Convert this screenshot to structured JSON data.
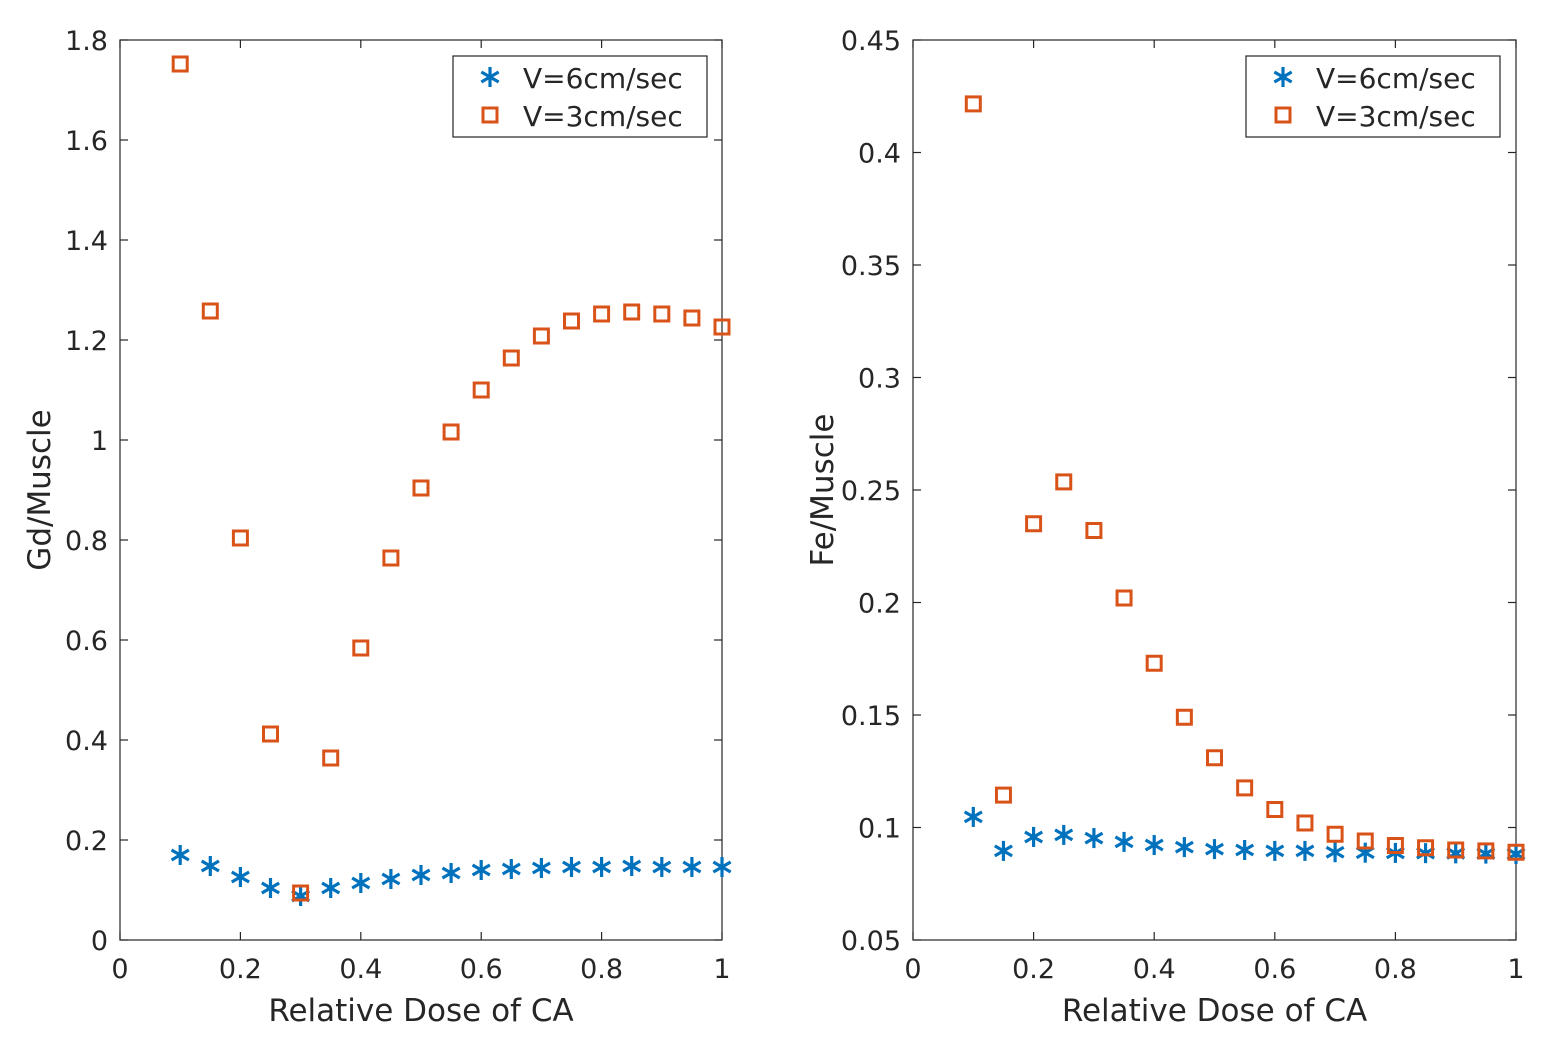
{
  "colors": {
    "series1": "#0072BD",
    "series2": "#D95319",
    "axis": "#262626"
  },
  "chart_data": [
    {
      "type": "scatter",
      "xlabel": "Relative Dose of CA",
      "ylabel": "Gd/Muscle",
      "xlim": [
        0,
        1
      ],
      "ylim": [
        0,
        1.8
      ],
      "xticks": [
        "0",
        "0.2",
        "0.4",
        "0.6",
        "0.8",
        "1"
      ],
      "yticks": [
        "0",
        "0.2",
        "0.4",
        "0.6",
        "0.8",
        "1",
        "1.2",
        "1.4",
        "1.6",
        "1.8"
      ],
      "grid": false,
      "legend_position": "top-right",
      "x": [
        0.1,
        0.15,
        0.2,
        0.25,
        0.3,
        0.35,
        0.4,
        0.45,
        0.5,
        0.55,
        0.6,
        0.65,
        0.7,
        0.75,
        0.8,
        0.85,
        0.9,
        0.95,
        1.0
      ],
      "series": [
        {
          "name": "V=6cm/sec",
          "marker": "asterisk",
          "values": [
            0.17,
            0.148,
            0.126,
            0.104,
            0.088,
            0.104,
            0.114,
            0.122,
            0.13,
            0.134,
            0.14,
            0.142,
            0.144,
            0.146,
            0.146,
            0.148,
            0.146,
            0.146,
            0.146
          ]
        },
        {
          "name": "V=3cm/sec",
          "marker": "square",
          "values": [
            1.752,
            1.258,
            0.804,
            0.412,
            0.094,
            0.364,
            0.584,
            0.764,
            0.904,
            1.016,
            1.1,
            1.164,
            1.208,
            1.238,
            1.252,
            1.256,
            1.252,
            1.244,
            1.226
          ]
        }
      ]
    },
    {
      "type": "scatter",
      "xlabel": "Relative Dose of CA",
      "ylabel": "Fe/Muscle",
      "xlim": [
        0,
        1
      ],
      "ylim": [
        0.05,
        0.45
      ],
      "xticks": [
        "0",
        "0.2",
        "0.4",
        "0.6",
        "0.8",
        "1"
      ],
      "yticks": [
        "0.05",
        "0.1",
        "0.15",
        "0.2",
        "0.25",
        "0.3",
        "0.35",
        "0.4",
        "0.45"
      ],
      "grid": false,
      "legend_position": "top-right",
      "x": [
        0.1,
        0.15,
        0.2,
        0.25,
        0.3,
        0.35,
        0.4,
        0.45,
        0.5,
        0.55,
        0.6,
        0.65,
        0.7,
        0.75,
        0.8,
        0.85,
        0.9,
        0.95,
        1.0
      ],
      "series": [
        {
          "name": "V=6cm/sec",
          "marker": "asterisk",
          "values": [
            0.1047,
            0.0896,
            0.0958,
            0.0967,
            0.0953,
            0.0936,
            0.0922,
            0.0913,
            0.0904,
            0.09,
            0.0896,
            0.0896,
            0.089,
            0.0888,
            0.0887,
            0.0886,
            0.0885,
            0.0884,
            0.0882
          ]
        },
        {
          "name": "V=3cm/sec",
          "marker": "square",
          "values": [
            0.4216,
            0.1144,
            0.235,
            0.2536,
            0.232,
            0.202,
            0.173,
            0.149,
            0.131,
            0.1176,
            0.108,
            0.102,
            0.097,
            0.094,
            0.092,
            0.091,
            0.09,
            0.0896,
            0.089
          ]
        }
      ]
    }
  ]
}
